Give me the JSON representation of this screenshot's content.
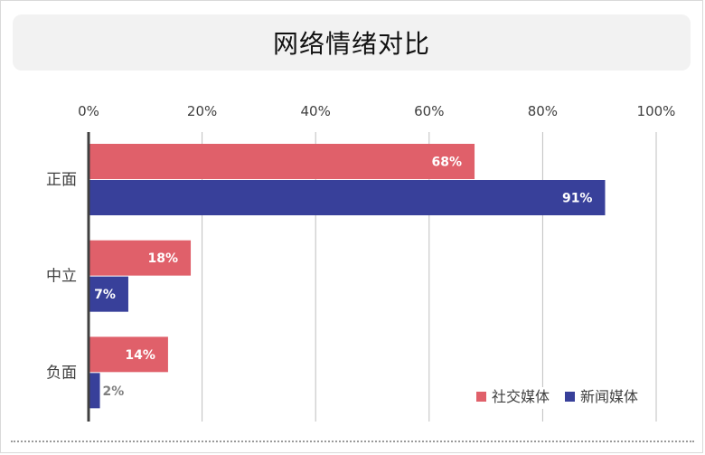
{
  "chart_data": {
    "type": "bar",
    "orientation": "horizontal",
    "title": "网络情绪对比",
    "categories": [
      "正面",
      "中立",
      "负面"
    ],
    "series": [
      {
        "name": "社交媒体",
        "color": "#e0606a",
        "values": [
          68,
          18,
          14
        ]
      },
      {
        "name": "新闻媒体",
        "color": "#38409a",
        "values": [
          91,
          7,
          2
        ]
      }
    ],
    "data_labels": [
      [
        "68%",
        "18%",
        "14%"
      ],
      [
        "91%",
        "7%",
        "2%"
      ]
    ],
    "xlim": [
      0,
      100
    ],
    "xticks": [
      0,
      20,
      40,
      60,
      80,
      100
    ],
    "xtick_labels": [
      "0%",
      "20%",
      "40%",
      "60%",
      "80%",
      "100%"
    ],
    "grid": true,
    "legend": "bottom-right"
  }
}
